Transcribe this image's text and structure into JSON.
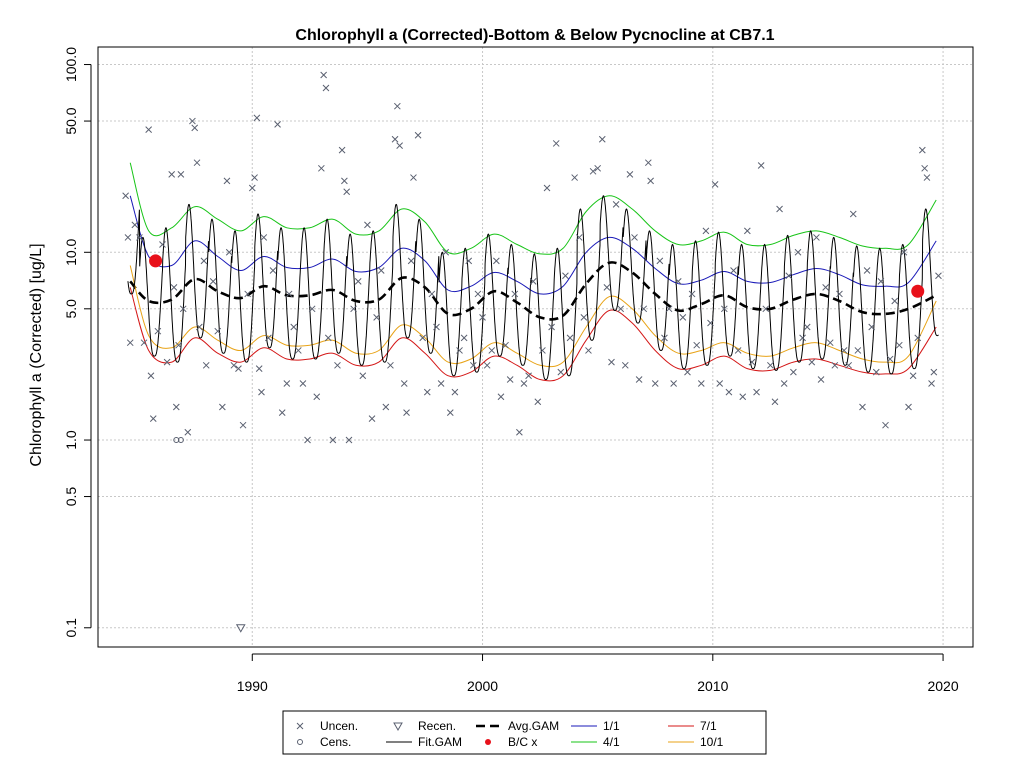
{
  "chart_data": {
    "type": "scatter",
    "title": "Chlorophyll a (Corrected)-Bottom & Below Pycnocline at CB7.1",
    "xlabel": "",
    "ylabel": "Chlorophyll a (Corrected) [ug/L]",
    "y_scale": "log",
    "xlim": [
      1983.3,
      2021.3
    ],
    "ylim": [
      0.079,
      124
    ],
    "x_ticks": [
      1990,
      2000,
      2010,
      2020
    ],
    "y_ticks": [
      0.1,
      0.5,
      1.0,
      5.0,
      10.0,
      50.0,
      100.0
    ],
    "y_tick_labels": [
      "0.1",
      "0.5",
      "1.0",
      "5.0",
      "10.0",
      "50.0",
      "100.0"
    ],
    "grid": true,
    "legend_position": "bottom",
    "legend": [
      {
        "label": "Uncen.",
        "symbol": "x",
        "color": "#5a6070"
      },
      {
        "label": "Cens.",
        "symbol": "circle",
        "color": "#5a6070"
      },
      {
        "label": "Recen.",
        "symbol": "triangle-down",
        "color": "#5a6070"
      },
      {
        "label": "Fit.GAM",
        "symbol": "line",
        "color": "#000000"
      },
      {
        "label": "Avg.GAM",
        "symbol": "dashed-line",
        "color": "#000000"
      },
      {
        "label": "B/C x",
        "symbol": "dot",
        "color": "#e8101a"
      },
      {
        "label": "1/1",
        "symbol": "line",
        "color": "#1a1ab8"
      },
      {
        "label": "4/1",
        "symbol": "line",
        "color": "#17c417"
      },
      {
        "label": "7/1",
        "symbol": "line",
        "color": "#d41717"
      },
      {
        "label": "10/1",
        "symbol": "line",
        "color": "#e8a317"
      }
    ],
    "colors": {
      "points": "#5a6070",
      "fit": "#000000",
      "avg": "#000000",
      "jan": "#1a1ab8",
      "apr": "#17c417",
      "jul": "#d41717",
      "oct": "#e8a317",
      "bc": "#e8101a",
      "grid": "#c8c8c8"
    },
    "series": [
      {
        "name": "Avg.GAM",
        "x": [
          1984.7,
          1985.5,
          1986.5,
          1987.5,
          1988.5,
          1989.5,
          1990.5,
          1991.5,
          1992.5,
          1993.5,
          1994.5,
          1995.5,
          1996.5,
          1997.5,
          1998.5,
          1999.5,
          2000.5,
          2001.5,
          2002.5,
          2003.5,
          2004.5,
          2005.5,
          2006.5,
          2007.5,
          2008.5,
          2009.5,
          2010.5,
          2011.5,
          2012.5,
          2013.5,
          2014.5,
          2015.5,
          2016.5,
          2017.5,
          2018.5,
          2019.7
        ],
        "y": [
          7.0,
          5.5,
          5.6,
          7.2,
          6.2,
          5.7,
          6.6,
          5.9,
          5.9,
          6.3,
          5.5,
          5.6,
          7.3,
          6.5,
          4.7,
          5.0,
          6.2,
          5.4,
          4.5,
          4.6,
          6.8,
          8.8,
          7.8,
          6.0,
          4.9,
          5.3,
          5.9,
          5.1,
          5.0,
          5.6,
          6.0,
          5.5,
          4.8,
          4.7,
          5.0,
          5.9
        ]
      },
      {
        "name": "1/1",
        "x": [
          1984.7,
          1985.5,
          1986.5,
          1987.5,
          1988.5,
          1989.5,
          1990.5,
          1991.5,
          1992.5,
          1993.5,
          1994.5,
          1995.5,
          1996.5,
          1997.5,
          1998.5,
          1999.5,
          2000.5,
          2001.5,
          2002.5,
          2003.5,
          2004.5,
          2005.5,
          2006.5,
          2007.5,
          2008.5,
          2009.5,
          2010.5,
          2011.5,
          2012.5,
          2013.5,
          2014.5,
          2015.5,
          2016.5,
          2017.5,
          2018.5,
          2019.7
        ],
        "y": [
          20.0,
          9.5,
          8.5,
          11.5,
          9.5,
          8.0,
          9.5,
          8.3,
          8.3,
          9.2,
          7.9,
          8.3,
          10.5,
          9.0,
          6.3,
          6.6,
          7.8,
          7.0,
          6.0,
          6.6,
          10.0,
          12.0,
          10.5,
          8.2,
          6.8,
          7.1,
          7.9,
          7.0,
          6.9,
          7.6,
          8.2,
          7.6,
          6.7,
          6.6,
          6.9,
          11.5
        ]
      },
      {
        "name": "4/1",
        "x": [
          1984.7,
          1985.5,
          1986.5,
          1987.5,
          1988.5,
          1989.5,
          1990.5,
          1991.5,
          1992.5,
          1993.5,
          1994.5,
          1995.5,
          1996.5,
          1997.5,
          1998.5,
          1999.5,
          2000.5,
          2001.5,
          2002.5,
          2003.5,
          2004.5,
          2005.5,
          2006.5,
          2007.5,
          2008.5,
          2009.5,
          2010.5,
          2011.5,
          2012.5,
          2013.5,
          2014.5,
          2015.5,
          2016.5,
          2017.5,
          2018.5,
          2019.7
        ],
        "y": [
          30.0,
          13.0,
          13.5,
          17.5,
          15.0,
          13.0,
          15.5,
          13.5,
          13.5,
          15.0,
          12.5,
          13.0,
          17.0,
          14.5,
          10.0,
          10.5,
          12.5,
          11.0,
          9.8,
          10.5,
          16.5,
          20.0,
          17.0,
          13.0,
          11.0,
          11.5,
          12.8,
          11.0,
          11.0,
          12.3,
          13.0,
          12.0,
          10.8,
          10.5,
          11.0,
          19.0
        ]
      },
      {
        "name": "7/1",
        "x": [
          1984.7,
          1985.5,
          1986.5,
          1987.5,
          1988.5,
          1989.5,
          1990.5,
          1991.5,
          1992.5,
          1993.5,
          1994.5,
          1995.5,
          1996.5,
          1997.5,
          1998.5,
          1999.5,
          2000.5,
          2001.5,
          2002.5,
          2003.5,
          2004.5,
          2005.5,
          2006.5,
          2007.5,
          2008.5,
          2009.5,
          2010.5,
          2011.5,
          2012.5,
          2013.5,
          2014.5,
          2015.5,
          2016.5,
          2017.5,
          2018.5,
          2019.7
        ],
        "y": [
          6.5,
          3.0,
          2.6,
          3.5,
          2.9,
          2.6,
          3.1,
          2.7,
          2.7,
          2.9,
          2.5,
          2.6,
          3.5,
          2.9,
          2.2,
          2.3,
          2.8,
          2.5,
          2.1,
          2.2,
          3.4,
          4.9,
          4.2,
          3.0,
          2.4,
          2.5,
          2.8,
          2.4,
          2.35,
          2.6,
          2.7,
          2.5,
          2.3,
          2.25,
          2.4,
          4.0
        ]
      },
      {
        "name": "10/1",
        "x": [
          1984.7,
          1985.5,
          1986.5,
          1987.5,
          1988.5,
          1989.5,
          1990.5,
          1991.5,
          1992.5,
          1993.5,
          1994.5,
          1995.5,
          1996.5,
          1997.5,
          1998.5,
          1999.5,
          2000.5,
          2001.5,
          2002.5,
          2003.5,
          2004.5,
          2005.5,
          2006.5,
          2007.5,
          2008.5,
          2009.5,
          2010.5,
          2011.5,
          2012.5,
          2013.5,
          2014.5,
          2015.5,
          2016.5,
          2017.5,
          2018.5,
          2019.7
        ],
        "y": [
          8.5,
          3.6,
          3.1,
          4.0,
          3.4,
          3.0,
          3.6,
          3.2,
          3.2,
          3.4,
          2.9,
          3.0,
          4.1,
          3.5,
          2.6,
          2.7,
          3.3,
          2.9,
          2.5,
          2.6,
          4.0,
          5.8,
          5.0,
          3.6,
          2.9,
          3.0,
          3.3,
          2.9,
          2.8,
          3.1,
          3.3,
          3.0,
          2.7,
          2.6,
          2.8,
          5.5
        ]
      }
    ],
    "fit_gam": {
      "name": "Fit.GAM",
      "x_start": 1984.6,
      "x_end": 2019.8,
      "seasonal_high": [
        25,
        12,
        13.5,
        18,
        15,
        13,
        16,
        13.5,
        13.5,
        15,
        12.5,
        13,
        18,
        15,
        10,
        10.5,
        12.5,
        11,
        9.8,
        10.5,
        17,
        20,
        17,
        13,
        11,
        11.5,
        12.8,
        11,
        11,
        12.3,
        13,
        12,
        10.8,
        10.5,
        11,
        17
      ],
      "seasonal_low": [
        6,
        2.8,
        2.6,
        3.5,
        2.9,
        2.6,
        3.1,
        2.7,
        2.7,
        2.9,
        2.5,
        2.6,
        3.5,
        2.9,
        2.2,
        2.3,
        2.8,
        2.5,
        2.1,
        2.2,
        3.4,
        4.9,
        4.2,
        3.0,
        2.4,
        2.5,
        2.8,
        2.4,
        2.35,
        2.6,
        2.7,
        2.5,
        2.3,
        2.25,
        2.4,
        3.6
      ]
    },
    "bc_points": [
      {
        "x": 1985.8,
        "y": 9.0
      },
      {
        "x": 2018.9,
        "y": 6.2
      }
    ],
    "uncensored": [
      [
        1984.5,
        20
      ],
      [
        1984.6,
        12
      ],
      [
        1984.7,
        3.3
      ],
      [
        1984.9,
        14
      ],
      [
        1985.1,
        12
      ],
      [
        1985.3,
        3.3
      ],
      [
        1985.5,
        45
      ],
      [
        1985.6,
        2.2
      ],
      [
        1985.7,
        1.3
      ],
      [
        1985.9,
        3.8
      ],
      [
        1986.1,
        11
      ],
      [
        1986.3,
        2.6
      ],
      [
        1986.5,
        26
      ],
      [
        1986.6,
        6.5
      ],
      [
        1986.7,
        1.5
      ],
      [
        1986.8,
        3.2
      ],
      [
        1986.9,
        26
      ],
      [
        1987.0,
        5.0
      ],
      [
        1987.2,
        1.1
      ],
      [
        1987.4,
        50
      ],
      [
        1987.5,
        46
      ],
      [
        1987.6,
        30
      ],
      [
        1987.7,
        4.0
      ],
      [
        1987.9,
        9.0
      ],
      [
        1988.0,
        2.5
      ],
      [
        1988.3,
        7.0
      ],
      [
        1988.5,
        3.8
      ],
      [
        1988.7,
        1.5
      ],
      [
        1988.9,
        24
      ],
      [
        1989.0,
        10
      ],
      [
        1989.2,
        2.5
      ],
      [
        1989.4,
        2.4
      ],
      [
        1989.6,
        1.2
      ],
      [
        1989.8,
        6
      ],
      [
        1990.0,
        22
      ],
      [
        1990.1,
        25
      ],
      [
        1990.2,
        52
      ],
      [
        1990.3,
        2.4
      ],
      [
        1990.4,
        1.8
      ],
      [
        1990.5,
        12
      ],
      [
        1990.7,
        3.5
      ],
      [
        1990.9,
        8
      ],
      [
        1991.1,
        48
      ],
      [
        1991.3,
        1.4
      ],
      [
        1991.5,
        2.0
      ],
      [
        1991.6,
        6
      ],
      [
        1991.8,
        4.0
      ],
      [
        1992.0,
        3.0
      ],
      [
        1992.2,
        2.0
      ],
      [
        1992.4,
        1.0
      ],
      [
        1992.6,
        5.0
      ],
      [
        1992.8,
        1.7
      ],
      [
        1993.0,
        28
      ],
      [
        1993.1,
        88
      ],
      [
        1993.2,
        75
      ],
      [
        1993.3,
        3.5
      ],
      [
        1993.5,
        1.0
      ],
      [
        1993.7,
        2.5
      ],
      [
        1993.9,
        35
      ],
      [
        1994.0,
        24
      ],
      [
        1994.1,
        21
      ],
      [
        1994.2,
        1.0
      ],
      [
        1994.4,
        5
      ],
      [
        1994.6,
        7
      ],
      [
        1994.8,
        2.2
      ],
      [
        1995.0,
        14
      ],
      [
        1995.2,
        1.3
      ],
      [
        1995.4,
        4.5
      ],
      [
        1995.6,
        8
      ],
      [
        1995.8,
        1.5
      ],
      [
        1996.0,
        2.5
      ],
      [
        1996.2,
        40
      ],
      [
        1996.3,
        60
      ],
      [
        1996.4,
        37
      ],
      [
        1996.6,
        2.0
      ],
      [
        1996.7,
        1.4
      ],
      [
        1996.9,
        9
      ],
      [
        1997.0,
        25
      ],
      [
        1997.2,
        42
      ],
      [
        1997.4,
        3.5
      ],
      [
        1997.6,
        1.8
      ],
      [
        1997.8,
        6
      ],
      [
        1998.0,
        4.0
      ],
      [
        1998.2,
        2.0
      ],
      [
        1998.4,
        10
      ],
      [
        1998.6,
        1.4
      ],
      [
        1998.8,
        1.8
      ],
      [
        1999.0,
        3.0
      ],
      [
        1999.2,
        3.5
      ],
      [
        1999.4,
        9
      ],
      [
        1999.6,
        2.5
      ],
      [
        1999.8,
        6
      ],
      [
        2000.0,
        4.5
      ],
      [
        2000.2,
        2.5
      ],
      [
        2000.4,
        3.0
      ],
      [
        2000.6,
        9
      ],
      [
        2000.8,
        1.7
      ],
      [
        2001.0,
        3.2
      ],
      [
        2001.2,
        2.1
      ],
      [
        2001.4,
        6
      ],
      [
        2001.6,
        1.1
      ],
      [
        2001.8,
        2.0
      ],
      [
        2002.0,
        2.2
      ],
      [
        2002.2,
        7
      ],
      [
        2002.4,
        1.6
      ],
      [
        2002.6,
        3.0
      ],
      [
        2002.8,
        22
      ],
      [
        2003.0,
        4.0
      ],
      [
        2003.2,
        38
      ],
      [
        2003.4,
        2.3
      ],
      [
        2003.6,
        7.5
      ],
      [
        2003.8,
        3.5
      ],
      [
        2004.0,
        25
      ],
      [
        2004.2,
        12
      ],
      [
        2004.4,
        4.5
      ],
      [
        2004.6,
        3.0
      ],
      [
        2004.8,
        27
      ],
      [
        2005.0,
        28
      ],
      [
        2005.2,
        40
      ],
      [
        2005.4,
        6.5
      ],
      [
        2005.6,
        2.6
      ],
      [
        2005.8,
        18
      ],
      [
        2006.0,
        5.0
      ],
      [
        2006.2,
        2.5
      ],
      [
        2006.4,
        26
      ],
      [
        2006.6,
        12
      ],
      [
        2006.8,
        2.1
      ],
      [
        2007.0,
        5.0
      ],
      [
        2007.2,
        30
      ],
      [
        2007.3,
        24
      ],
      [
        2007.5,
        2.0
      ],
      [
        2007.7,
        9
      ],
      [
        2007.9,
        3.5
      ],
      [
        2008.1,
        5.0
      ],
      [
        2008.3,
        2.0
      ],
      [
        2008.5,
        7.0
      ],
      [
        2008.7,
        4.5
      ],
      [
        2008.9,
        2.3
      ],
      [
        2009.1,
        6.0
      ],
      [
        2009.3,
        3.2
      ],
      [
        2009.5,
        2.0
      ],
      [
        2009.7,
        13
      ],
      [
        2009.9,
        4.2
      ],
      [
        2010.1,
        23
      ],
      [
        2010.3,
        2.0
      ],
      [
        2010.5,
        5.0
      ],
      [
        2010.7,
        1.8
      ],
      [
        2010.9,
        8.0
      ],
      [
        2011.1,
        3.0
      ],
      [
        2011.3,
        1.7
      ],
      [
        2011.5,
        13
      ],
      [
        2011.7,
        2.6
      ],
      [
        2011.9,
        1.8
      ],
      [
        2012.1,
        29
      ],
      [
        2012.3,
        5.0
      ],
      [
        2012.5,
        2.5
      ],
      [
        2012.7,
        1.6
      ],
      [
        2012.9,
        17
      ],
      [
        2013.1,
        2.0
      ],
      [
        2013.3,
        7.5
      ],
      [
        2013.5,
        2.3
      ],
      [
        2013.7,
        10
      ],
      [
        2013.9,
        3.5
      ],
      [
        2014.1,
        4.0
      ],
      [
        2014.3,
        2.6
      ],
      [
        2014.5,
        12
      ],
      [
        2014.7,
        2.1
      ],
      [
        2014.9,
        6.5
      ],
      [
        2015.1,
        3.3
      ],
      [
        2015.3,
        2.5
      ],
      [
        2015.5,
        6.0
      ],
      [
        2015.7,
        3.0
      ],
      [
        2015.9,
        2.5
      ],
      [
        2016.1,
        16
      ],
      [
        2016.3,
        3.0
      ],
      [
        2016.5,
        1.5
      ],
      [
        2016.7,
        8
      ],
      [
        2016.9,
        4.0
      ],
      [
        2017.1,
        2.3
      ],
      [
        2017.3,
        7.0
      ],
      [
        2017.5,
        1.2
      ],
      [
        2017.7,
        2.7
      ],
      [
        2017.9,
        5.5
      ],
      [
        2018.1,
        3.2
      ],
      [
        2018.3,
        10
      ],
      [
        2018.5,
        1.5
      ],
      [
        2018.7,
        2.2
      ],
      [
        2018.9,
        3.5
      ],
      [
        2019.1,
        35
      ],
      [
        2019.2,
        28
      ],
      [
        2019.3,
        25
      ],
      [
        2019.5,
        2.0
      ],
      [
        2019.6,
        2.3
      ],
      [
        2019.8,
        7.5
      ]
    ],
    "censored": [
      [
        1986.7,
        1.0
      ],
      [
        1986.9,
        1.0
      ]
    ],
    "recensored": [
      [
        1989.5,
        0.1
      ]
    ]
  }
}
